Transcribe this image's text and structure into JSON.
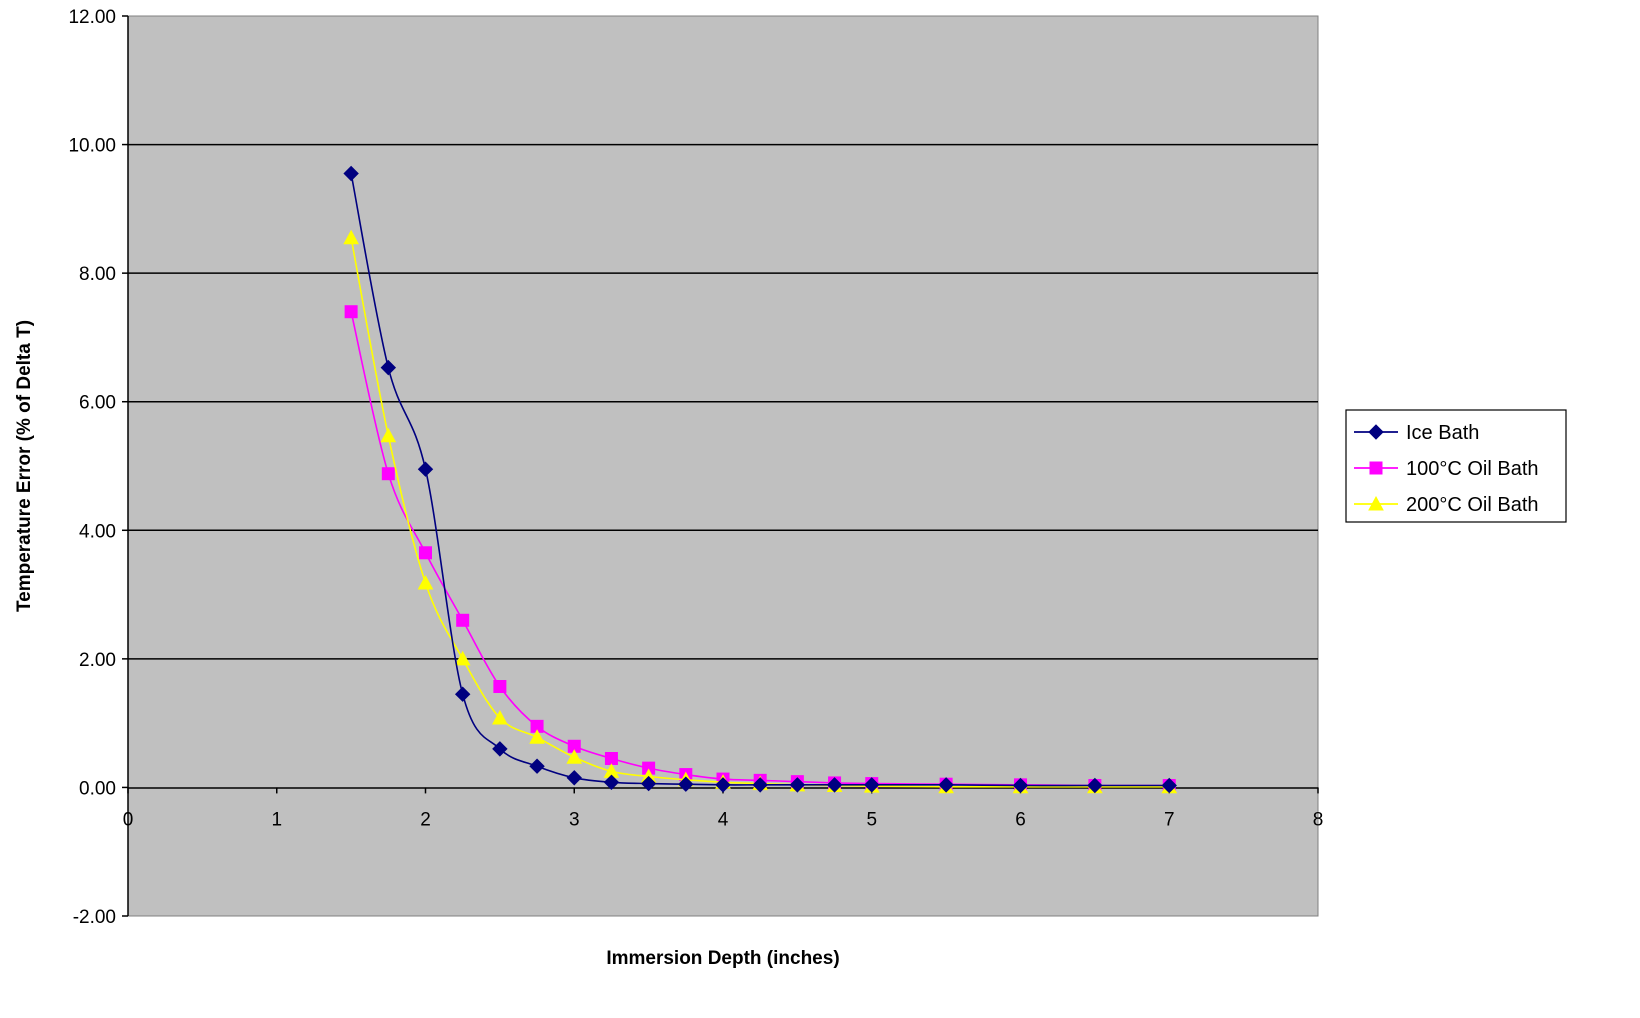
{
  "chart_data": {
    "type": "line",
    "title": "",
    "xlabel": "Immersion Depth (inches)",
    "ylabel": "Temperature Error (% of Delta T)",
    "xlim": [
      0,
      8
    ],
    "ylim": [
      -2,
      12
    ],
    "x_ticks": [
      "0",
      "1",
      "2",
      "3",
      "4",
      "5",
      "6",
      "7",
      "8"
    ],
    "y_ticks": [
      "-2.00",
      "0.00",
      "2.00",
      "4.00",
      "6.00",
      "8.00",
      "10.00",
      "12.00"
    ],
    "grid": "horizontal",
    "plot_background": "#C0C0C0",
    "legend_position": "right",
    "series": [
      {
        "name": "Ice Bath",
        "color": "#000080",
        "marker": "diamond",
        "x": [
          1.5,
          1.75,
          2,
          2.25,
          2.5,
          2.75,
          3,
          3.25,
          3.5,
          3.75,
          4,
          4.25,
          4.5,
          4.75,
          5,
          5.5,
          6,
          6.5,
          7
        ],
        "y": [
          9.55,
          6.53,
          4.95,
          1.45,
          0.6,
          0.33,
          0.15,
          0.08,
          0.06,
          0.05,
          0.04,
          0.04,
          0.04,
          0.04,
          0.04,
          0.04,
          0.03,
          0.03,
          0.03
        ]
      },
      {
        "name": "100°C Oil Bath",
        "color": "#FF00FF",
        "marker": "square",
        "x": [
          1.5,
          1.75,
          2,
          2.25,
          2.5,
          2.75,
          3,
          3.25,
          3.5,
          3.75,
          4,
          4.25,
          4.5,
          4.75,
          5,
          5.5,
          6,
          6.5,
          7
        ],
        "y": [
          7.4,
          4.88,
          3.65,
          2.6,
          1.57,
          0.95,
          0.64,
          0.45,
          0.3,
          0.2,
          0.13,
          0.11,
          0.09,
          0.07,
          0.06,
          0.05,
          0.04,
          0.03,
          0.03
        ]
      },
      {
        "name": "200°C Oil Bath",
        "color": "#FFFF00",
        "marker": "triangle",
        "x": [
          1.5,
          1.75,
          2,
          2.25,
          2.5,
          2.75,
          3,
          3.25,
          3.5,
          3.75,
          4,
          4.25,
          4.5,
          4.75,
          5,
          5.5,
          6,
          6.5,
          7
        ],
        "y": [
          8.55,
          5.47,
          3.18,
          2.0,
          1.08,
          0.78,
          0.47,
          0.25,
          0.17,
          0.12,
          0.08,
          0.06,
          0.04,
          0.03,
          0.02,
          0.01,
          0.01,
          0.01,
          0.01
        ]
      }
    ]
  }
}
